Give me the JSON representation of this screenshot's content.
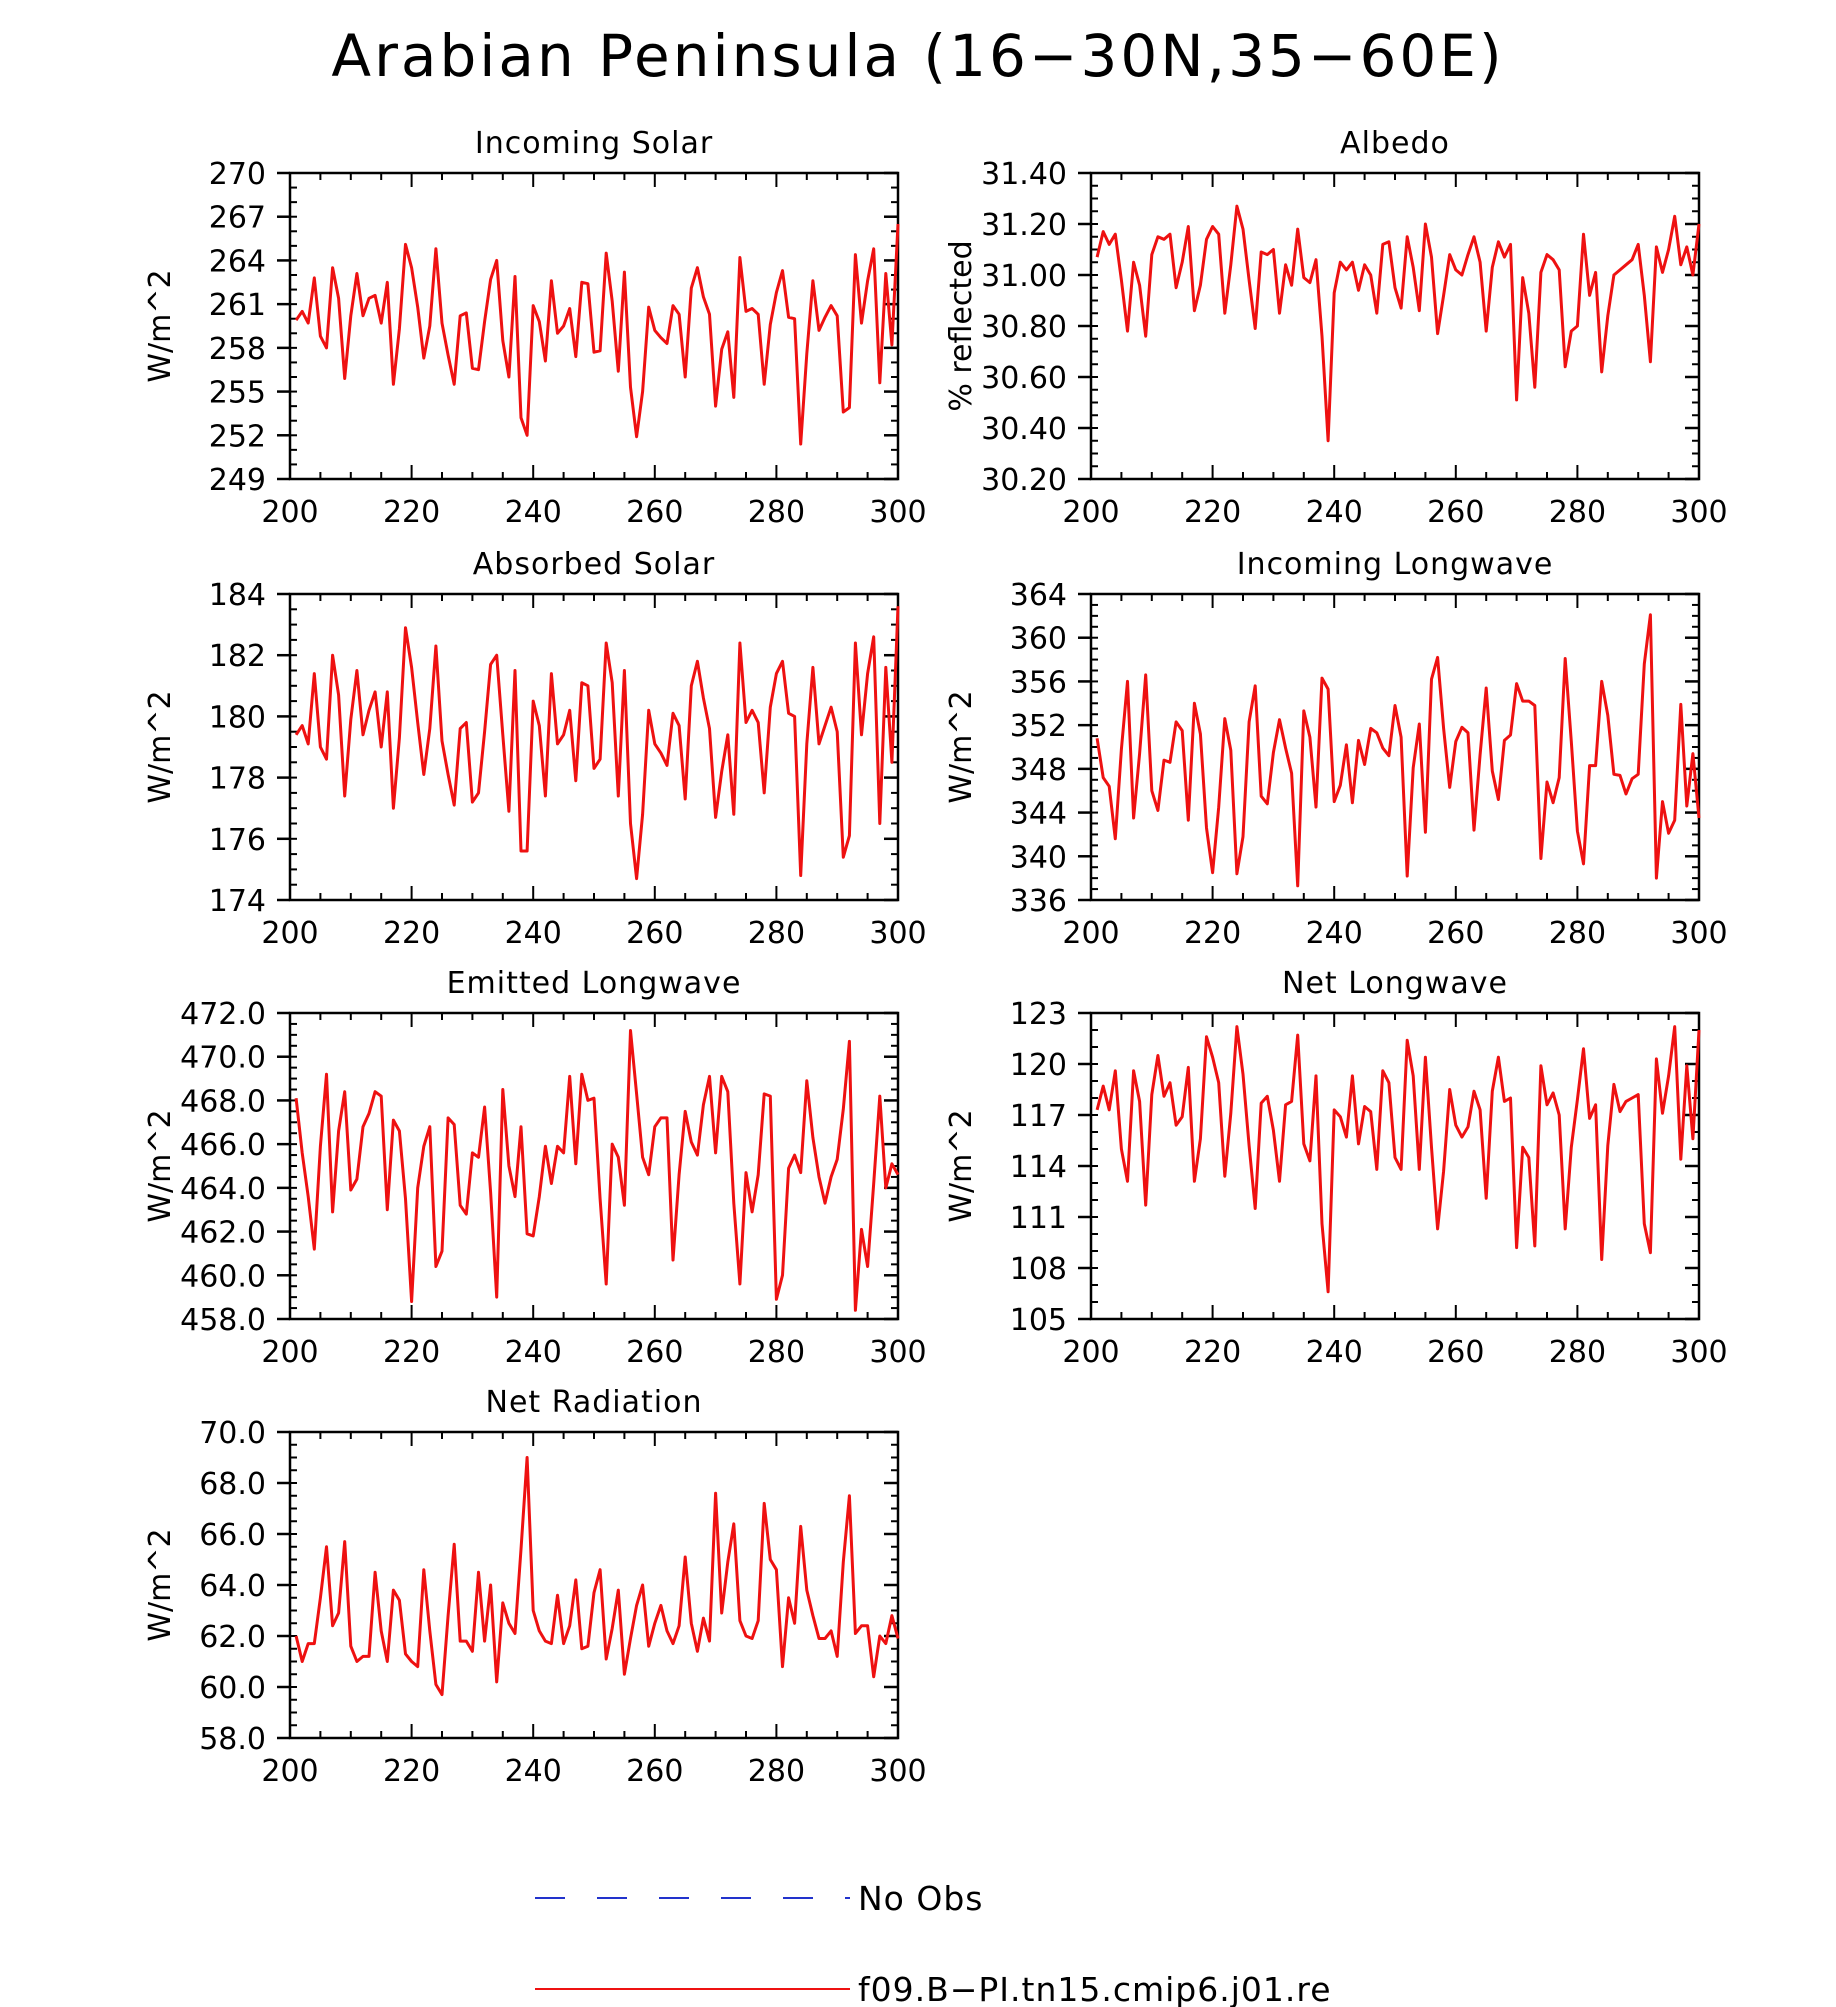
{
  "main_title": "Arabian Peninsula (16−30N,35−60E)",
  "colors": {
    "model_line": "#ee1111",
    "obs_line": "#2233cc",
    "axis": "#000000"
  },
  "legend": {
    "obs_label": "No Obs",
    "model_label": "f09.B−PI.tn15.cmip6.j01.re"
  },
  "chart_data": [
    {
      "type": "line",
      "title": "Incoming Solar",
      "ylabel": "W/m^2",
      "xlim": [
        200,
        300
      ],
      "ylim": [
        249,
        270
      ],
      "xticks": [
        200,
        220,
        240,
        260,
        280,
        300
      ],
      "yticks": [
        "249",
        "252",
        "255",
        "258",
        "261",
        "264",
        "267",
        "270"
      ],
      "yminor": 1,
      "x_start": 201,
      "series": [
        {
          "name": "f09.B−PI.tn15.cmip6.j01.re",
          "values": [
            259.9,
            260.5,
            259.7,
            262.8,
            258.8,
            258.0,
            263.5,
            261.4,
            255.9,
            260.2,
            263.1,
            260.2,
            261.4,
            261.6,
            259.7,
            262.5,
            255.5,
            259.3,
            265.1,
            263.5,
            260.8,
            257.3,
            259.5,
            264.8,
            259.7,
            257.5,
            255.5,
            260.2,
            260.4,
            256.6,
            256.5,
            259.8,
            262.7,
            264.0,
            258.5,
            256.0,
            262.9,
            253.2,
            252.0,
            260.9,
            259.8,
            257.1,
            262.6,
            259.0,
            259.5,
            260.7,
            257.4,
            262.5,
            262.4,
            257.7,
            257.8,
            264.5,
            261.2,
            256.4,
            263.2,
            255.3,
            251.9,
            255.0,
            260.8,
            259.2,
            258.7,
            258.3,
            260.9,
            260.3,
            256.0,
            262.1,
            263.5,
            261.5,
            260.3,
            254.0,
            257.9,
            259.1,
            254.6,
            264.2,
            260.5,
            260.7,
            260.3,
            255.5,
            259.6,
            261.8,
            263.3,
            260.1,
            260.0,
            251.4,
            257.6,
            262.6,
            259.2,
            260.1,
            260.9,
            260.2,
            253.6,
            253.9,
            264.4,
            259.7,
            262.6,
            264.8,
            255.6,
            263.1,
            258.2,
            266.5
          ]
        }
      ]
    },
    {
      "type": "line",
      "title": "Albedo",
      "ylabel": "% reflected",
      "xlim": [
        200,
        300
      ],
      "ylim": [
        30.2,
        31.4
      ],
      "xticks": [
        200,
        220,
        240,
        260,
        280,
        300
      ],
      "yticks": [
        "30.20",
        "30.40",
        "30.60",
        "30.80",
        "31.00",
        "31.20",
        "31.40"
      ],
      "yminor": 0.05,
      "x_start": 201,
      "series": [
        {
          "name": "f09.B−PI.tn15.cmip6.j01.re",
          "values": [
            31.07,
            31.17,
            31.12,
            31.16,
            30.98,
            30.78,
            31.05,
            30.96,
            30.76,
            31.08,
            31.15,
            31.14,
            31.16,
            30.95,
            31.05,
            31.19,
            30.86,
            30.96,
            31.14,
            31.19,
            31.16,
            30.85,
            31.04,
            31.27,
            31.18,
            30.98,
            30.79,
            31.09,
            31.08,
            31.1,
            30.85,
            31.04,
            30.96,
            31.18,
            30.99,
            30.97,
            31.06,
            30.76,
            30.35,
            30.93,
            31.05,
            31.02,
            31.05,
            30.94,
            31.04,
            31.0,
            30.85,
            31.12,
            31.13,
            30.95,
            30.87,
            31.15,
            31.03,
            30.86,
            31.2,
            31.07,
            30.77,
            30.92,
            31.08,
            31.02,
            31.0,
            31.08,
            31.15,
            31.05,
            30.78,
            31.03,
            31.13,
            31.07,
            31.12,
            30.51,
            30.99,
            30.85,
            30.56,
            31.01,
            31.08,
            31.06,
            31.02,
            30.64,
            30.78,
            30.8,
            31.16,
            30.92,
            31.01,
            30.62,
            30.84,
            31.0,
            31.02,
            31.04,
            31.06,
            31.12,
            30.92,
            30.66,
            31.11,
            31.01,
            31.1,
            31.23,
            31.04,
            31.11,
            31.0,
            31.2
          ]
        }
      ]
    },
    {
      "type": "line",
      "title": "Absorbed Solar",
      "ylabel": "W/m^2",
      "xlim": [
        200,
        300
      ],
      "ylim": [
        174,
        184
      ],
      "xticks": [
        200,
        220,
        240,
        260,
        280,
        300
      ],
      "yticks": [
        "174",
        "176",
        "178",
        "180",
        "182",
        "184"
      ],
      "yminor": 0.5,
      "x_start": 201,
      "series": [
        {
          "name": "f09.B−PI.tn15.cmip6.j01.re",
          "values": [
            179.4,
            179.7,
            179.1,
            181.4,
            179.0,
            178.6,
            182.0,
            180.7,
            177.4,
            179.9,
            181.5,
            179.4,
            180.2,
            180.8,
            179.0,
            180.8,
            177.0,
            179.3,
            182.9,
            181.6,
            179.8,
            178.1,
            179.6,
            182.3,
            179.2,
            178.1,
            177.1,
            179.6,
            179.8,
            177.2,
            177.5,
            179.5,
            181.7,
            182.0,
            179.4,
            176.9,
            181.5,
            175.6,
            175.6,
            180.5,
            179.7,
            177.4,
            181.4,
            179.1,
            179.4,
            180.2,
            177.9,
            181.1,
            181.0,
            178.3,
            178.6,
            182.4,
            181.1,
            177.4,
            181.5,
            176.5,
            174.7,
            176.8,
            180.2,
            179.1,
            178.8,
            178.4,
            180.1,
            179.7,
            177.3,
            181.0,
            181.8,
            180.6,
            179.6,
            176.7,
            178.2,
            179.4,
            176.8,
            182.4,
            179.8,
            180.2,
            179.8,
            177.5,
            180.3,
            181.4,
            181.8,
            180.1,
            180.0,
            174.8,
            179.1,
            181.6,
            179.1,
            179.7,
            180.3,
            179.5,
            175.4,
            176.1,
            182.4,
            179.4,
            181.4,
            182.6,
            176.5,
            181.6,
            178.5,
            183.6
          ]
        }
      ]
    },
    {
      "type": "line",
      "title": "Incoming Longwave",
      "ylabel": "W/m^2",
      "xlim": [
        200,
        300
      ],
      "ylim": [
        336,
        364
      ],
      "xticks": [
        200,
        220,
        240,
        260,
        280,
        300
      ],
      "yticks": [
        "336",
        "340",
        "344",
        "348",
        "352",
        "356",
        "360",
        "364"
      ],
      "yminor": 1,
      "x_start": 201,
      "series": [
        {
          "name": "f09.B−PI.tn15.cmip6.j01.re",
          "values": [
            350.8,
            347.2,
            346.4,
            341.6,
            349.8,
            356.0,
            343.5,
            349.4,
            356.6,
            346.0,
            344.2,
            348.8,
            348.6,
            352.3,
            351.5,
            343.3,
            354.0,
            351.2,
            342.6,
            338.5,
            344.5,
            352.6,
            349.7,
            338.4,
            341.8,
            352.3,
            355.6,
            345.5,
            344.8,
            349.5,
            352.5,
            349.9,
            347.6,
            337.3,
            353.3,
            350.9,
            344.5,
            356.3,
            355.3,
            345.0,
            346.5,
            350.2,
            344.9,
            350.6,
            348.4,
            351.7,
            351.3,
            349.9,
            349.2,
            353.8,
            350.9,
            338.2,
            348.1,
            352.1,
            342.2,
            356.2,
            358.2,
            351.7,
            346.3,
            350.5,
            351.8,
            351.3,
            342.4,
            349.3,
            355.4,
            347.8,
            345.2,
            350.6,
            351.1,
            355.8,
            354.2,
            354.2,
            353.8,
            339.8,
            346.8,
            344.9,
            347.2,
            358.1,
            350.5,
            342.3,
            339.3,
            348.3,
            348.3,
            356.0,
            352.9,
            347.5,
            347.4,
            345.7,
            347.1,
            347.5,
            357.6,
            362.1,
            338.0,
            345.0,
            342.1,
            343.3,
            353.9,
            344.6,
            349.4,
            343.5
          ]
        }
      ]
    },
    {
      "type": "line",
      "title": "Emitted Longwave",
      "ylabel": "W/m^2",
      "xlim": [
        200,
        300
      ],
      "ylim": [
        458,
        472
      ],
      "xticks": [
        200,
        220,
        240,
        260,
        280,
        300
      ],
      "yticks": [
        "458.0",
        "460.0",
        "462.0",
        "464.0",
        "466.0",
        "468.0",
        "470.0",
        "472.0"
      ],
      "yminor": 0.5,
      "x_start": 201,
      "series": [
        {
          "name": "f09.B−PI.tn15.cmip6.j01.re",
          "values": [
            468.1,
            465.6,
            463.6,
            461.2,
            465.9,
            469.2,
            462.9,
            466.6,
            468.4,
            463.9,
            464.4,
            466.8,
            467.4,
            468.4,
            468.2,
            463.0,
            467.1,
            466.6,
            463.5,
            458.8,
            464.0,
            465.9,
            466.8,
            460.4,
            461.1,
            467.2,
            466.9,
            463.2,
            462.8,
            465.6,
            465.4,
            467.7,
            463.8,
            459.0,
            468.5,
            465.0,
            463.6,
            466.8,
            461.9,
            461.8,
            463.6,
            465.9,
            464.2,
            465.9,
            465.6,
            469.1,
            465.1,
            469.2,
            468.0,
            468.1,
            463.5,
            459.6,
            466.0,
            465.4,
            463.2,
            471.2,
            468.3,
            465.4,
            464.6,
            466.8,
            467.2,
            467.2,
            460.7,
            464.6,
            467.5,
            466.1,
            465.5,
            467.8,
            469.1,
            465.6,
            469.1,
            468.4,
            463.3,
            459.6,
            464.7,
            462.9,
            464.6,
            468.3,
            468.2,
            458.9,
            460.0,
            464.9,
            465.5,
            464.7,
            468.9,
            466.3,
            464.5,
            463.3,
            464.5,
            465.3,
            467.6,
            470.7,
            458.4,
            462.1,
            460.4,
            464.2,
            468.2,
            464.0,
            465.1,
            464.6
          ]
        }
      ]
    },
    {
      "type": "line",
      "title": "Net Longwave",
      "ylabel": "W/m^2",
      "xlim": [
        200,
        300
      ],
      "ylim": [
        105,
        123
      ],
      "xticks": [
        200,
        220,
        240,
        260,
        280,
        300
      ],
      "yticks": [
        "105",
        "108",
        "111",
        "114",
        "117",
        "120",
        "123"
      ],
      "yminor": 1,
      "x_start": 201,
      "series": [
        {
          "name": "f09.B−PI.tn15.cmip6.j01.re",
          "values": [
            117.3,
            118.7,
            117.3,
            119.6,
            115.0,
            113.1,
            119.6,
            117.8,
            111.7,
            118.2,
            120.5,
            118.1,
            118.9,
            116.4,
            116.9,
            119.8,
            113.1,
            115.6,
            121.6,
            120.4,
            118.9,
            113.4,
            117.1,
            122.2,
            119.4,
            115.2,
            111.5,
            117.7,
            118.1,
            116.1,
            113.1,
            117.6,
            117.8,
            121.7,
            115.3,
            114.3,
            119.3,
            110.6,
            106.6,
            117.3,
            116.9,
            115.7,
            119.3,
            115.3,
            117.5,
            117.2,
            113.8,
            119.6,
            118.9,
            114.5,
            113.8,
            121.4,
            119.3,
            113.8,
            120.4,
            115.1,
            110.3,
            113.7,
            118.5,
            116.4,
            115.7,
            116.3,
            118.4,
            117.3,
            112.1,
            118.4,
            120.4,
            117.8,
            118.0,
            109.2,
            115.1,
            114.5,
            109.3,
            119.9,
            117.6,
            118.3,
            117.0,
            110.3,
            115.1,
            117.9,
            120.9,
            116.8,
            117.6,
            108.5,
            115.2,
            118.8,
            117.2,
            117.8,
            118.0,
            118.2,
            110.6,
            108.9,
            120.3,
            117.1,
            119.3,
            122.2,
            114.4,
            119.9,
            115.6,
            122.0
          ]
        }
      ]
    },
    {
      "type": "line",
      "title": "Net Radiation",
      "ylabel": "W/m^2",
      "xlim": [
        200,
        300
      ],
      "ylim": [
        58,
        70
      ],
      "xticks": [
        200,
        220,
        240,
        260,
        280,
        300
      ],
      "yticks": [
        "58.0",
        "60.0",
        "62.0",
        "64.0",
        "66.0",
        "68.0",
        "70.0"
      ],
      "yminor": 0.5,
      "x_start": 201,
      "series": [
        {
          "name": "f09.B−PI.tn15.cmip6.j01.re",
          "values": [
            62.0,
            61.0,
            61.7,
            61.7,
            63.5,
            65.5,
            62.4,
            62.9,
            65.7,
            61.6,
            61.0,
            61.2,
            61.2,
            64.5,
            62.2,
            61.0,
            63.8,
            63.4,
            61.3,
            61.0,
            60.8,
            64.6,
            62.2,
            60.1,
            59.7,
            62.8,
            65.6,
            61.8,
            61.8,
            61.4,
            64.5,
            61.8,
            64.0,
            60.2,
            63.3,
            62.5,
            62.1,
            65.4,
            69.0,
            63.0,
            62.2,
            61.8,
            61.7,
            63.6,
            61.7,
            62.4,
            64.2,
            61.5,
            61.6,
            63.7,
            64.6,
            61.1,
            62.3,
            63.8,
            60.5,
            61.9,
            63.2,
            64.0,
            61.6,
            62.5,
            63.2,
            62.2,
            61.7,
            62.4,
            65.1,
            62.5,
            61.4,
            62.7,
            61.8,
            67.6,
            62.9,
            64.9,
            66.4,
            62.6,
            62.0,
            61.9,
            62.6,
            67.2,
            65.0,
            64.6,
            60.8,
            63.5,
            62.5,
            66.3,
            63.8,
            62.8,
            61.9,
            61.9,
            62.2,
            61.2,
            64.9,
            67.5,
            62.1,
            62.4,
            62.4,
            60.4,
            62.0,
            61.7,
            62.8,
            61.9
          ]
        }
      ]
    }
  ]
}
